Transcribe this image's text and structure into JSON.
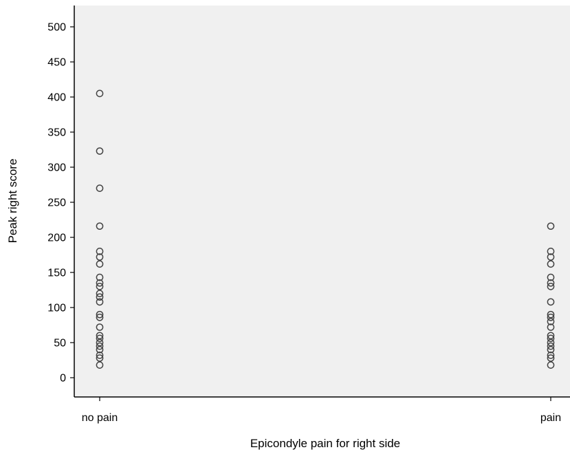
{
  "chart_data": {
    "type": "scatter",
    "title": "",
    "xlabel": "Epicondyle pain for right side",
    "ylabel": "Peak right score",
    "categories": [
      "no pain",
      "pain"
    ],
    "ylim": [
      -28,
      528
    ],
    "yticks": [
      0,
      50,
      100,
      150,
      200,
      250,
      300,
      350,
      400,
      450,
      500
    ],
    "grid": false,
    "legend": "none",
    "colors": {
      "background": "#ffffff",
      "plot_area": "#f0f0f0",
      "axis": "#000000",
      "marker": "#444444"
    },
    "series": [
      {
        "category": "no pain",
        "values": [
          405,
          323,
          270,
          216,
          180,
          172,
          162,
          143,
          135,
          130,
          120,
          115,
          108,
          90,
          86,
          72,
          60,
          56,
          50,
          45,
          40,
          32,
          28,
          18
        ]
      },
      {
        "category": "pain",
        "values": [
          216,
          180,
          172,
          162,
          143,
          135,
          130,
          108,
          90,
          86,
          80,
          72,
          60,
          56,
          50,
          45,
          40,
          32,
          28,
          18
        ]
      }
    ]
  }
}
